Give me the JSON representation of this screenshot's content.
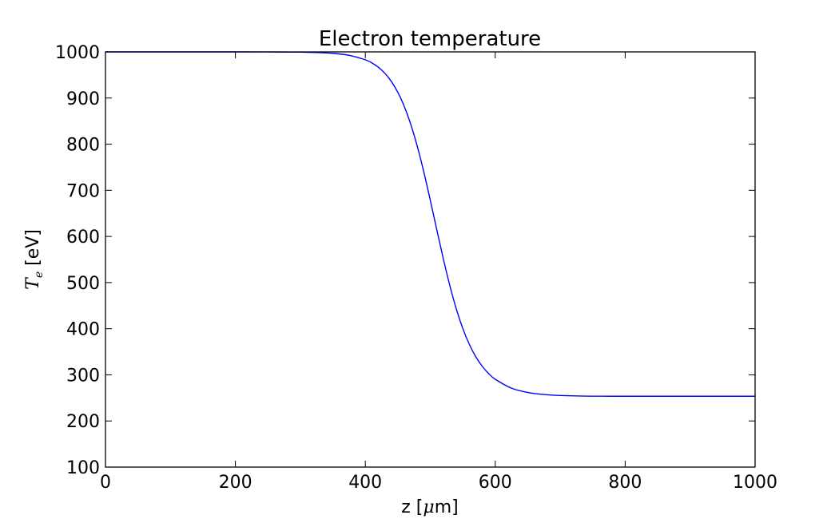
{
  "chart_data": {
    "type": "line",
    "title": "Electron temperature",
    "xlabel": "z [μm]",
    "xlabel_parts": {
      "prefix": "z [",
      "symbol": "μ",
      "suffix": "m]"
    },
    "ylabel": "T_e [eV]",
    "ylabel_parts": {
      "symbol": "T",
      "subscript": "e",
      "suffix": " [eV]"
    },
    "xlim": [
      0,
      1000
    ],
    "ylim": [
      100,
      1000
    ],
    "x_ticks": [
      0,
      200,
      400,
      600,
      800,
      1000
    ],
    "y_ticks": [
      100,
      200,
      300,
      400,
      500,
      600,
      700,
      800,
      900,
      1000
    ],
    "x_tick_labels": [
      "0",
      "200",
      "400",
      "600",
      "800",
      "1000"
    ],
    "y_tick_labels": [
      "100",
      "200",
      "300",
      "400",
      "500",
      "600",
      "700",
      "800",
      "900",
      "1000"
    ],
    "grid": false,
    "series": [
      {
        "color": "#0000ff",
        "x": [
          0,
          100,
          200,
          250,
          300,
          325,
          350,
          375,
          400,
          410,
          420,
          430,
          440,
          450,
          460,
          470,
          480,
          490,
          500,
          510,
          520,
          530,
          540,
          550,
          560,
          570,
          580,
          590,
          600,
          625,
          650,
          675,
          700,
          750,
          800,
          900,
          1000
        ],
        "y": [
          1000,
          1000,
          1000,
          999.9,
          999.4,
          998.7,
          996.9,
          992.6,
          982.9,
          976.2,
          966.8,
          953.8,
          936.1,
          912.5,
          881.7,
          842.7,
          795.2,
          739.9,
          678.6,
          614.7,
          551.9,
          493.9,
          443.1,
          400.6,
          366.3,
          339.3,
          318.5,
          302.5,
          290.4,
          271.1,
          261.8,
          257.4,
          255.3,
          253.8,
          253.6,
          253.6,
          253.6
        ]
      }
    ],
    "colors": {
      "line": "#0000ff",
      "axes": "#000000",
      "background": "#ffffff"
    }
  }
}
